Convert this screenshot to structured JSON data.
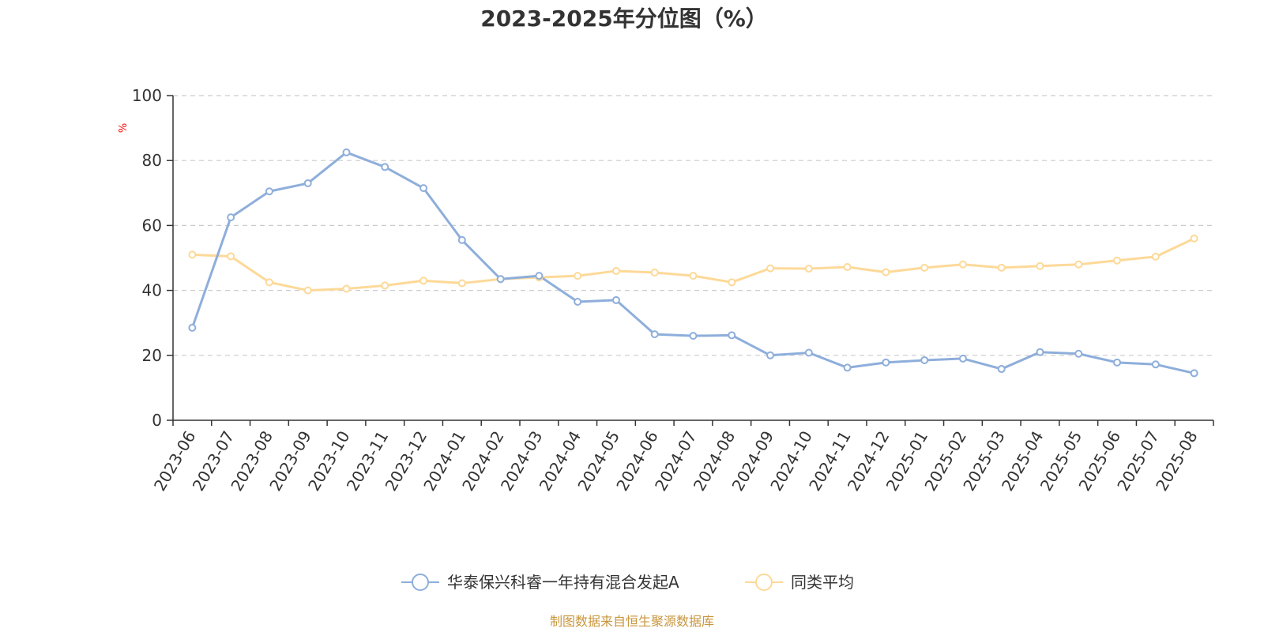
{
  "chart_data": {
    "type": "line",
    "title": "2023-2025年分位图（%）",
    "ylabel": "%",
    "ylim": [
      0,
      100
    ],
    "yticks": [
      "0",
      "20",
      "40",
      "60",
      "80",
      "100"
    ],
    "grid": true,
    "legend_position": "bottom-center",
    "categories": [
      "2023-06",
      "2023-07",
      "2023-08",
      "2023-09",
      "2023-10",
      "2023-11",
      "2023-12",
      "2024-01",
      "2024-02",
      "2024-03",
      "2024-04",
      "2024-05",
      "2024-06",
      "2024-07",
      "2024-08",
      "2024-09",
      "2024-10",
      "2024-11",
      "2024-12",
      "2025-01",
      "2025-02",
      "2025-03",
      "2025-04",
      "2025-05",
      "2025-06",
      "2025-07",
      "2025-08"
    ],
    "series": [
      {
        "name": "华泰保兴科睿一年持有混合发起A",
        "color": "#8eaedb",
        "values": [
          28.5,
          62.5,
          70.5,
          73,
          82.5,
          78,
          71.5,
          55.5,
          43.5,
          44.5,
          36.5,
          37,
          26.5,
          26,
          26.2,
          20,
          20.8,
          16.2,
          17.8,
          18.5,
          19,
          15.8,
          21,
          20.5,
          17.8,
          17.2,
          14.5
        ]
      },
      {
        "name": "同类平均",
        "color": "#fdd998",
        "values": [
          51,
          50.5,
          42.5,
          40,
          40.5,
          41.5,
          43,
          42.2,
          43.5,
          44,
          44.5,
          46,
          45.5,
          44.5,
          42.5,
          46.8,
          46.7,
          47.2,
          45.6,
          47,
          48,
          47,
          47.5,
          48,
          49.2,
          50.4,
          56
        ]
      }
    ]
  },
  "footer": {
    "source": "制图数据来自恒生聚源数据库"
  }
}
